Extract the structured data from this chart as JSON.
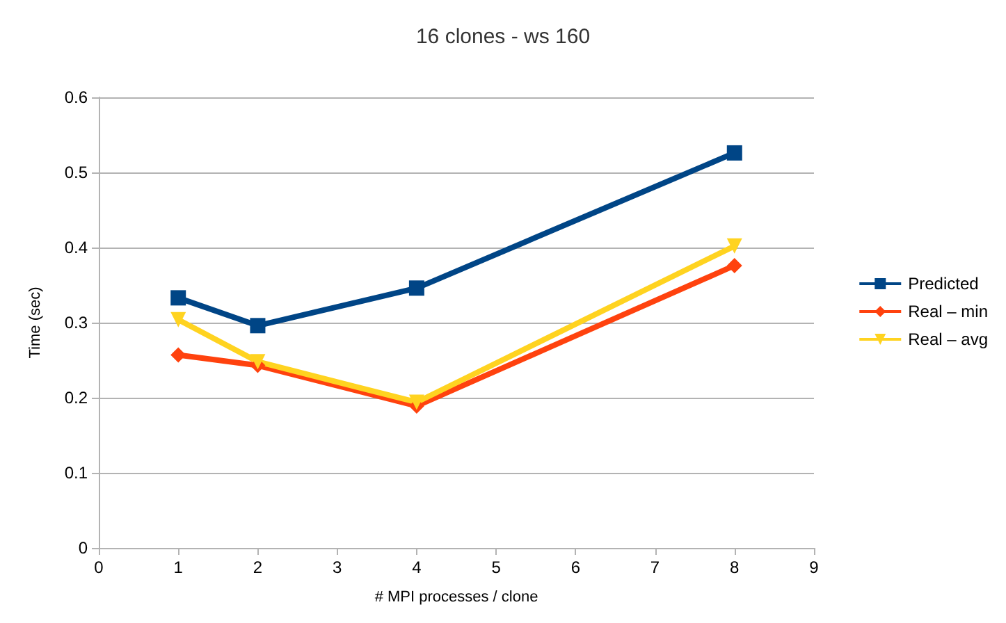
{
  "chart_data": {
    "type": "line",
    "title": "16 clones - ws 160",
    "xlabel": "# MPI processes / clone",
    "ylabel": "Time (sec)",
    "x": [
      1,
      2,
      4,
      8
    ],
    "series": [
      {
        "name": "Predicted",
        "color": "#004586",
        "marker": "square",
        "values": [
          0.333,
          0.296,
          0.346,
          0.526
        ]
      },
      {
        "name": "Real – min",
        "color": "#ff420e",
        "marker": "diamond",
        "values": [
          0.257,
          0.243,
          0.189,
          0.376
        ]
      },
      {
        "name": "Real – avg",
        "color": "#ffd320",
        "marker": "triangle",
        "values": [
          0.304,
          0.248,
          0.194,
          0.402
        ]
      }
    ],
    "xlim": [
      0,
      9
    ],
    "xticks": [
      0,
      1,
      2,
      3,
      4,
      5,
      6,
      7,
      8,
      9
    ],
    "ylim": [
      0,
      0.6
    ],
    "yticks": [
      0,
      0.1,
      0.2,
      0.3,
      0.4,
      0.5,
      0.6
    ],
    "grid": "y",
    "legend": "right",
    "line_style": "solid"
  }
}
